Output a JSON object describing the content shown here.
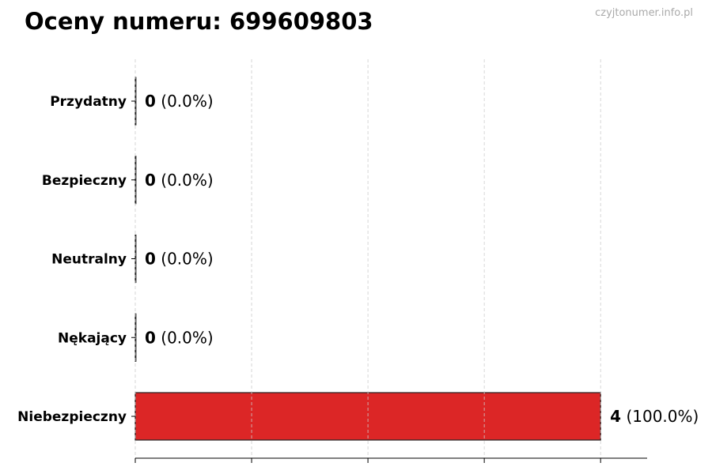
{
  "title": "Oceny numeru: 699609803",
  "watermark": "czyjtonumer.info.pl",
  "chart_data": {
    "type": "bar",
    "orientation": "horizontal",
    "title": "Oceny numeru: 699609803",
    "categories": [
      "Przydatny",
      "Bezpieczny",
      "Neutralny",
      "Nękający",
      "Niebezpieczny"
    ],
    "values": [
      0,
      0,
      0,
      0,
      4
    ],
    "data_labels": [
      {
        "count": "0",
        "pct": "(0.0%)"
      },
      {
        "count": "0",
        "pct": "(0.0%)"
      },
      {
        "count": "0",
        "pct": "(0.0%)"
      },
      {
        "count": "0",
        "pct": "(0.0%)"
      },
      {
        "count": "4",
        "pct": "(100.0%)"
      }
    ],
    "colors": [
      "#dc2626",
      "#dc2626",
      "#dc2626",
      "#dc2626",
      "#dc2626"
    ],
    "xlim": [
      0,
      4.4
    ],
    "xticks": [
      0,
      1,
      2,
      3,
      4
    ],
    "xtick_labels_shown": false,
    "grid": "x, dashed",
    "xlabel": "",
    "ylabel": ""
  }
}
